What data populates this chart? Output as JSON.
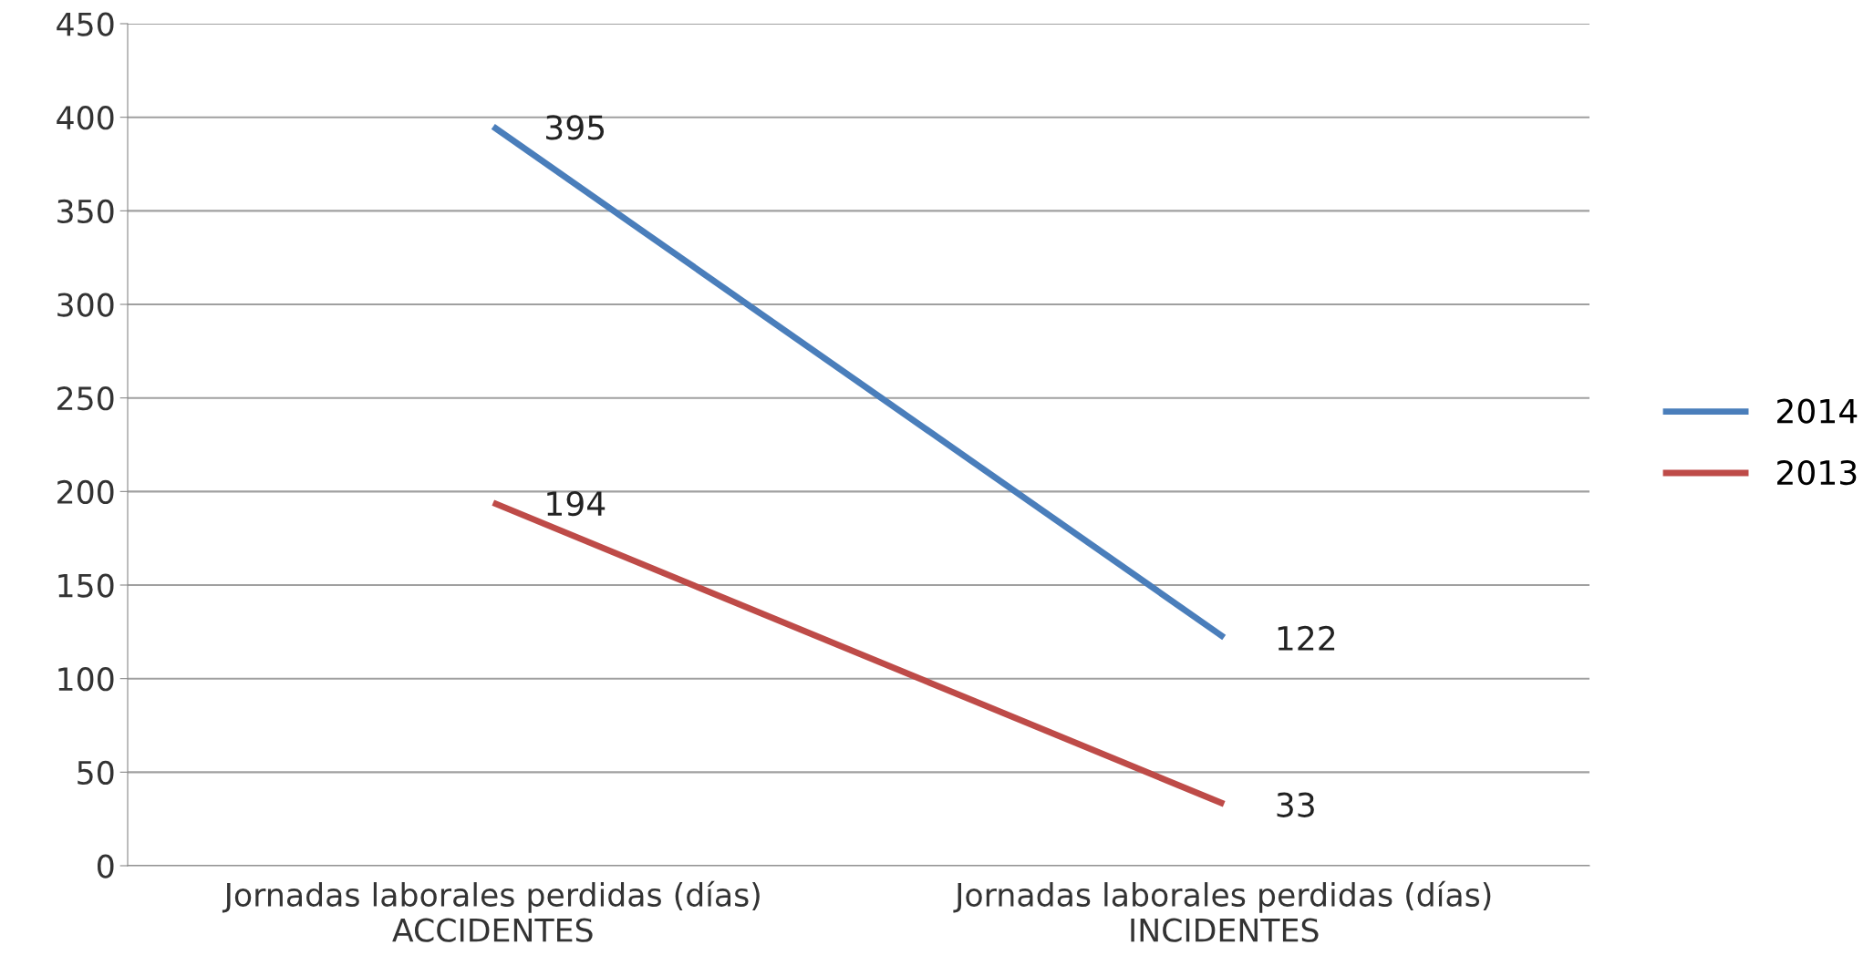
{
  "chart_data": {
    "type": "line",
    "categories": [
      "Jornadas laborales perdidas (días)\nACCIDENTES",
      "Jornadas laborales perdidas (días)\nINCIDENTES"
    ],
    "series": [
      {
        "name": "2014",
        "color": "#4a7ebb",
        "values": [
          395,
          122
        ]
      },
      {
        "name": "2013",
        "color": "#be4b48",
        "values": [
          194,
          33
        ]
      }
    ],
    "ylim": [
      0,
      450
    ],
    "yticks": [
      0,
      50,
      100,
      150,
      200,
      250,
      300,
      350,
      400,
      450
    ],
    "grid": "y",
    "legend": "right",
    "data_labels": true,
    "marker": "none",
    "line_style": "solid"
  }
}
